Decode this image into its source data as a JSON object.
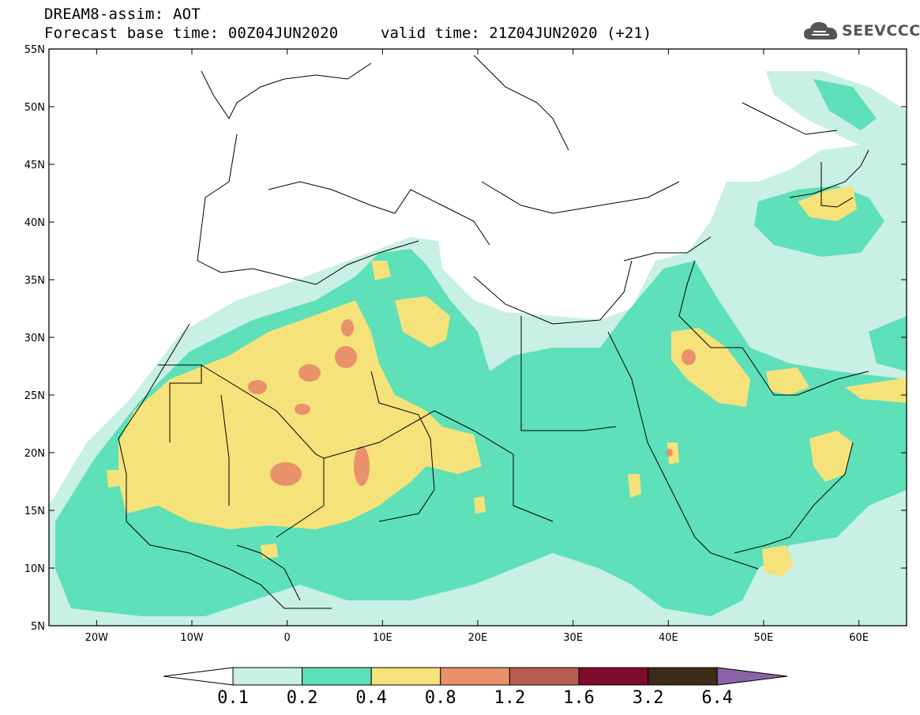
{
  "header": {
    "title_line1": "DREAM8-assim: AOT",
    "title_line2": "Forecast base time: 00Z04JUN2020",
    "valid_time": "valid time: 21Z04JUN2020 (+21)",
    "logo_text": "SEEVCCC"
  },
  "map": {
    "lon_range": [
      -25,
      65
    ],
    "lat_range": [
      5,
      55
    ],
    "lat_ticks": [
      "5N",
      "10N",
      "15N",
      "20N",
      "25N",
      "30N",
      "35N",
      "40N",
      "45N",
      "50N",
      "55N"
    ],
    "lon_ticks": [
      "20W",
      "10W",
      "0",
      "10E",
      "20E",
      "30E",
      "40E",
      "50E",
      "60E"
    ],
    "variable": "AOT"
  },
  "colorbar": {
    "levels": [
      "0.1",
      "0.2",
      "0.4",
      "0.8",
      "1.2",
      "1.6",
      "3.2",
      "6.4"
    ],
    "colors": [
      "#ffffff",
      "#c8f0e4",
      "#5ee0b8",
      "#f5e27a",
      "#e8916a",
      "#b75d4e",
      "#7f0b2d",
      "#3d2a18",
      "#8c62a6"
    ]
  }
}
